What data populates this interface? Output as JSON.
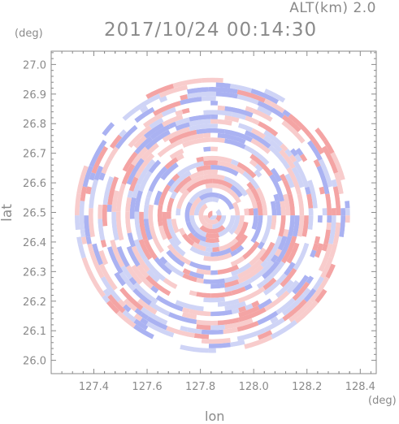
{
  "chart_data": {
    "type": "heatmap",
    "title": "2017/10/24 00:14:30",
    "subtitle": "ALT(km) 2.0",
    "xlabel": "lon",
    "ylabel": "lat",
    "x_unit": "(deg)",
    "y_unit": "(deg)",
    "xlim": [
      127.24,
      128.46
    ],
    "ylim": [
      25.955,
      27.045
    ],
    "x_ticks": [
      127.4,
      127.6,
      127.8,
      128.0,
      128.2,
      128.4
    ],
    "x_tick_labels": [
      "127.4",
      "127.6",
      "127.8",
      "128.0",
      "128.2",
      "128.4"
    ],
    "y_ticks": [
      26.0,
      26.1,
      26.2,
      26.3,
      26.4,
      26.5,
      26.6,
      26.7,
      26.8,
      26.9,
      27.0
    ],
    "y_tick_labels": [
      "26.0",
      "26.1",
      "26.2",
      "26.3",
      "26.4",
      "26.5",
      "26.6",
      "26.7",
      "26.8",
      "26.9",
      "27.0"
    ],
    "center": {
      "lon": 127.845,
      "lat": 26.49
    },
    "radius_deg_lat": 0.465,
    "colors": {
      "positive": "#f4a0a0",
      "negative": "#a8b0f0",
      "neutral": "#ffffff",
      "axis": "#8a8a8a"
    }
  }
}
